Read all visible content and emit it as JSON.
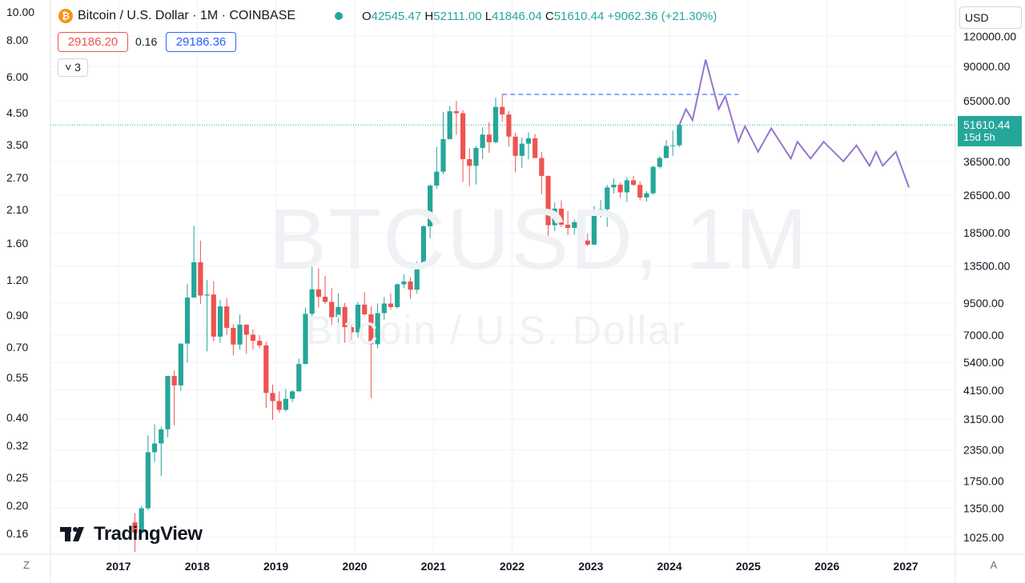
{
  "header": {
    "symbol_icon": "₿",
    "title": "Bitcoin / U.S. Dollar · 1M · COINBASE",
    "ohlc": {
      "o_label": "O",
      "o": "42545.47",
      "h_label": "H",
      "h": "52111.00",
      "l_label": "L",
      "l": "41846.04",
      "c_label": "C",
      "c": "51610.44",
      "change": "+9062.36 (+21.30%)"
    }
  },
  "trade": {
    "sell": "29186.20",
    "spread": "0.16",
    "buy": "29186.36"
  },
  "indicators_toggle": {
    "label": "˅ 3"
  },
  "currency": {
    "label": "USD"
  },
  "last_price": {
    "value": "51610.44",
    "countdown": "15d 5h"
  },
  "watermark": {
    "main": "BTCUSD, 1M",
    "sub": "Bitcoin / U.S. Dollar"
  },
  "logo": {
    "text": "TradingView"
  },
  "controls": {
    "left": "Z",
    "right": "A"
  },
  "colors": {
    "up": "#26a69a",
    "down": "#ef5350",
    "projection": "#9575cd",
    "dashed": "#2962ff",
    "grid": "#f0f3fa"
  },
  "chart_data": {
    "type": "candlestick",
    "scale": "log",
    "title": "Bitcoin / U.S. Dollar · 1M · COINBASE",
    "x_ticks": [
      "2017",
      "2018",
      "2019",
      "2020",
      "2021",
      "2022",
      "2023",
      "2024",
      "2025",
      "2026",
      "2027"
    ],
    "y_ticks_right": [
      "120000.00",
      "90000.00",
      "65000.00",
      "36500.00",
      "26500.00",
      "18500.00",
      "13500.00",
      "9500.00",
      "7000.00",
      "5400.00",
      "4150.00",
      "3150.00",
      "2350.00",
      "1750.00",
      "1350.00",
      "1025.00"
    ],
    "y_ticks_left": [
      "10.00",
      "8.00",
      "6.00",
      "4.50",
      "3.50",
      "2.70",
      "2.10",
      "1.60",
      "1.20",
      "0.90",
      "0.70",
      "0.55",
      "0.40",
      "0.32",
      "0.25",
      "0.20",
      "0.16"
    ],
    "ylim": [
      900,
      140000
    ],
    "candles": [
      {
        "t": "2017-03",
        "o": 1180,
        "h": 1290,
        "l": 890,
        "c": 1070
      },
      {
        "t": "2017-04",
        "o": 1070,
        "h": 1380,
        "l": 1050,
        "c": 1350
      },
      {
        "t": "2017-05",
        "o": 1350,
        "h": 2700,
        "l": 1330,
        "c": 2300
      },
      {
        "t": "2017-06",
        "o": 2300,
        "h": 3000,
        "l": 2100,
        "c": 2500
      },
      {
        "t": "2017-07",
        "o": 2500,
        "h": 2930,
        "l": 1830,
        "c": 2860
      },
      {
        "t": "2017-08",
        "o": 2860,
        "h": 4750,
        "l": 2650,
        "c": 4750
      },
      {
        "t": "2017-09",
        "o": 4750,
        "h": 5000,
        "l": 2970,
        "c": 4340
      },
      {
        "t": "2017-10",
        "o": 4340,
        "h": 6470,
        "l": 4120,
        "c": 6460
      },
      {
        "t": "2017-11",
        "o": 6460,
        "h": 11400,
        "l": 5400,
        "c": 10000
      },
      {
        "t": "2017-12",
        "o": 10000,
        "h": 19800,
        "l": 10000,
        "c": 14000
      },
      {
        "t": "2018-01",
        "o": 14000,
        "h": 17200,
        "l": 9400,
        "c": 10200
      },
      {
        "t": "2018-02",
        "o": 10200,
        "h": 11800,
        "l": 6000,
        "c": 10300
      },
      {
        "t": "2018-03",
        "o": 10300,
        "h": 11700,
        "l": 6600,
        "c": 6900
      },
      {
        "t": "2018-04",
        "o": 6900,
        "h": 9800,
        "l": 6500,
        "c": 9200
      },
      {
        "t": "2018-05",
        "o": 9200,
        "h": 9950,
        "l": 7000,
        "c": 7500
      },
      {
        "t": "2018-06",
        "o": 7500,
        "h": 7770,
        "l": 5770,
        "c": 6400
      },
      {
        "t": "2018-07",
        "o": 6400,
        "h": 8500,
        "l": 6100,
        "c": 7730
      },
      {
        "t": "2018-08",
        "o": 7730,
        "h": 7760,
        "l": 5880,
        "c": 7030
      },
      {
        "t": "2018-09",
        "o": 7030,
        "h": 7400,
        "l": 6100,
        "c": 6630
      },
      {
        "t": "2018-10",
        "o": 6630,
        "h": 7000,
        "l": 6200,
        "c": 6350
      },
      {
        "t": "2018-11",
        "o": 6350,
        "h": 6570,
        "l": 3500,
        "c": 4040
      },
      {
        "t": "2018-12",
        "o": 4040,
        "h": 4370,
        "l": 3130,
        "c": 3740
      },
      {
        "t": "2019-01",
        "o": 3740,
        "h": 4100,
        "l": 3350,
        "c": 3440
      },
      {
        "t": "2019-02",
        "o": 3440,
        "h": 4200,
        "l": 3380,
        "c": 3820
      },
      {
        "t": "2019-03",
        "o": 3820,
        "h": 4150,
        "l": 3700,
        "c": 4100
      },
      {
        "t": "2019-04",
        "o": 4100,
        "h": 5600,
        "l": 4100,
        "c": 5320
      },
      {
        "t": "2019-05",
        "o": 5320,
        "h": 9100,
        "l": 5300,
        "c": 8570
      },
      {
        "t": "2019-06",
        "o": 8570,
        "h": 13880,
        "l": 7450,
        "c": 10820
      },
      {
        "t": "2019-07",
        "o": 10820,
        "h": 13200,
        "l": 9100,
        "c": 10080
      },
      {
        "t": "2019-08",
        "o": 10080,
        "h": 12300,
        "l": 9400,
        "c": 9600
      },
      {
        "t": "2019-09",
        "o": 9600,
        "h": 10950,
        "l": 7700,
        "c": 8300
      },
      {
        "t": "2019-10",
        "o": 8300,
        "h": 10400,
        "l": 7300,
        "c": 9150
      },
      {
        "t": "2019-11",
        "o": 9150,
        "h": 9500,
        "l": 6500,
        "c": 7550
      },
      {
        "t": "2019-12",
        "o": 7550,
        "h": 7750,
        "l": 6450,
        "c": 7190
      },
      {
        "t": "2020-01",
        "o": 7190,
        "h": 9600,
        "l": 6850,
        "c": 9350
      },
      {
        "t": "2020-02",
        "o": 9350,
        "h": 10520,
        "l": 8450,
        "c": 8530
      },
      {
        "t": "2020-03",
        "o": 8530,
        "h": 9200,
        "l": 3850,
        "c": 6420
      },
      {
        "t": "2020-04",
        "o": 6420,
        "h": 9450,
        "l": 6160,
        "c": 8630
      },
      {
        "t": "2020-05",
        "o": 8630,
        "h": 10070,
        "l": 8100,
        "c": 9450
      },
      {
        "t": "2020-06",
        "o": 9450,
        "h": 10400,
        "l": 8900,
        "c": 9140
      },
      {
        "t": "2020-07",
        "o": 9140,
        "h": 11450,
        "l": 9020,
        "c": 11350
      },
      {
        "t": "2020-08",
        "o": 11350,
        "h": 12480,
        "l": 10950,
        "c": 11650
      },
      {
        "t": "2020-09",
        "o": 11650,
        "h": 12100,
        "l": 9900,
        "c": 10780
      },
      {
        "t": "2020-10",
        "o": 10780,
        "h": 14100,
        "l": 10400,
        "c": 13800
      },
      {
        "t": "2020-11",
        "o": 13800,
        "h": 19900,
        "l": 13200,
        "c": 19700
      },
      {
        "t": "2020-12",
        "o": 19700,
        "h": 29300,
        "l": 17600,
        "c": 29000
      },
      {
        "t": "2021-01",
        "o": 29000,
        "h": 41900,
        "l": 28100,
        "c": 33100
      },
      {
        "t": "2021-02",
        "o": 33100,
        "h": 58350,
        "l": 32300,
        "c": 45100
      },
      {
        "t": "2021-03",
        "o": 45100,
        "h": 61800,
        "l": 45000,
        "c": 58800
      },
      {
        "t": "2021-04",
        "o": 58800,
        "h": 64900,
        "l": 47000,
        "c": 57700
      },
      {
        "t": "2021-05",
        "o": 57700,
        "h": 59500,
        "l": 30000,
        "c": 37300
      },
      {
        "t": "2021-06",
        "o": 37300,
        "h": 41300,
        "l": 28800,
        "c": 35000
      },
      {
        "t": "2021-07",
        "o": 35000,
        "h": 42300,
        "l": 29300,
        "c": 41500
      },
      {
        "t": "2021-08",
        "o": 41500,
        "h": 50500,
        "l": 37300,
        "c": 47100
      },
      {
        "t": "2021-09",
        "o": 47100,
        "h": 52900,
        "l": 39600,
        "c": 43800
      },
      {
        "t": "2021-10",
        "o": 43800,
        "h": 67000,
        "l": 43300,
        "c": 61300
      },
      {
        "t": "2021-11",
        "o": 61300,
        "h": 69000,
        "l": 53300,
        "c": 57000
      },
      {
        "t": "2021-12",
        "o": 57000,
        "h": 59000,
        "l": 42000,
        "c": 46200
      },
      {
        "t": "2022-01",
        "o": 46200,
        "h": 47900,
        "l": 32900,
        "c": 38500
      },
      {
        "t": "2022-02",
        "o": 38500,
        "h": 45800,
        "l": 34300,
        "c": 43200
      },
      {
        "t": "2022-03",
        "o": 43200,
        "h": 48200,
        "l": 37200,
        "c": 45500
      },
      {
        "t": "2022-04",
        "o": 45500,
        "h": 47400,
        "l": 37700,
        "c": 37700
      },
      {
        "t": "2022-05",
        "o": 37700,
        "h": 40000,
        "l": 26700,
        "c": 31800
      },
      {
        "t": "2022-06",
        "o": 31800,
        "h": 31900,
        "l": 17600,
        "c": 19900
      },
      {
        "t": "2022-07",
        "o": 19900,
        "h": 24700,
        "l": 18800,
        "c": 23300
      },
      {
        "t": "2022-08",
        "o": 23300,
        "h": 25200,
        "l": 19600,
        "c": 20000
      },
      {
        "t": "2022-09",
        "o": 20000,
        "h": 22800,
        "l": 18100,
        "c": 19400
      },
      {
        "t": "2022-10",
        "o": 19400,
        "h": 21000,
        "l": 18200,
        "c": 20500
      },
      {
        "t": "2022-11",
        "o": 20500,
        "h": 21400,
        "l": 15500,
        "c": 17200
      },
      {
        "t": "2022-12",
        "o": 17200,
        "h": 18400,
        "l": 16300,
        "c": 16550
      },
      {
        "t": "2023-01",
        "o": 16550,
        "h": 23900,
        "l": 16500,
        "c": 23100
      },
      {
        "t": "2023-02",
        "o": 23100,
        "h": 25250,
        "l": 21400,
        "c": 23150
      },
      {
        "t": "2023-03",
        "o": 23150,
        "h": 29200,
        "l": 19600,
        "c": 28500
      },
      {
        "t": "2023-04",
        "o": 28500,
        "h": 31000,
        "l": 26900,
        "c": 29250
      },
      {
        "t": "2023-05",
        "o": 29250,
        "h": 29800,
        "l": 25800,
        "c": 27200
      },
      {
        "t": "2023-06",
        "o": 27200,
        "h": 31400,
        "l": 24800,
        "c": 30500
      },
      {
        "t": "2023-07",
        "o": 30500,
        "h": 31800,
        "l": 28900,
        "c": 29200
      },
      {
        "t": "2023-08",
        "o": 29200,
        "h": 30200,
        "l": 25200,
        "c": 25900
      },
      {
        "t": "2023-09",
        "o": 25900,
        "h": 27500,
        "l": 24900,
        "c": 26960
      },
      {
        "t": "2023-10",
        "o": 26960,
        "h": 35000,
        "l": 26550,
        "c": 34650
      },
      {
        "t": "2023-11",
        "o": 34650,
        "h": 38400,
        "l": 34100,
        "c": 37700
      },
      {
        "t": "2023-12",
        "o": 37700,
        "h": 44700,
        "l": 37600,
        "c": 42280
      },
      {
        "t": "2024-01",
        "o": 42280,
        "h": 48960,
        "l": 38500,
        "c": 42545
      },
      {
        "t": "2024-02",
        "o": 42545,
        "h": 52111,
        "l": 41846,
        "c": 51610
      }
    ],
    "projection": {
      "series_name": "projected path",
      "points": [
        {
          "t": "2024-02",
          "v": 51610
        },
        {
          "t": "2024-03",
          "v": 60000
        },
        {
          "t": "2024-04",
          "v": 54000
        },
        {
          "t": "2024-06",
          "v": 96000
        },
        {
          "t": "2024-08",
          "v": 60000
        },
        {
          "t": "2024-09",
          "v": 68000
        },
        {
          "t": "2024-11",
          "v": 44000
        },
        {
          "t": "2024-12",
          "v": 51000
        },
        {
          "t": "2025-02",
          "v": 40000
        },
        {
          "t": "2025-04",
          "v": 50000
        },
        {
          "t": "2025-07",
          "v": 37500
        },
        {
          "t": "2025-08",
          "v": 44000
        },
        {
          "t": "2025-10",
          "v": 37500
        },
        {
          "t": "2025-12",
          "v": 44000
        },
        {
          "t": "2026-03",
          "v": 36500
        },
        {
          "t": "2026-05",
          "v": 42500
        },
        {
          "t": "2026-07",
          "v": 35000
        },
        {
          "t": "2026-08",
          "v": 40000
        },
        {
          "t": "2026-09",
          "v": 35000
        },
        {
          "t": "2026-11",
          "v": 40000
        },
        {
          "t": "2027-01",
          "v": 28500
        }
      ]
    },
    "resistance_level": {
      "value": 69000,
      "from": "2021-11",
      "to": "2024-11",
      "style": "dashed"
    },
    "last_price_line": 51610.44
  }
}
